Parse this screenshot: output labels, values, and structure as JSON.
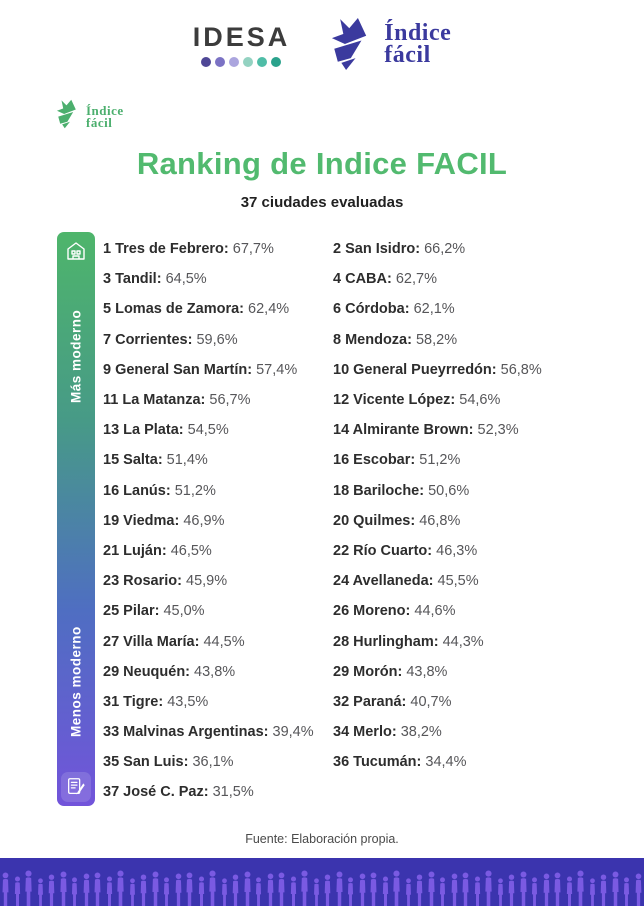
{
  "header": {
    "idesa": {
      "name": "IDESA",
      "dot_colors": [
        "#4f4796",
        "#7b72c4",
        "#aba5de",
        "#93d2c1",
        "#4fbda7",
        "#2aa28c"
      ]
    },
    "indice_facil_logo": {
      "line1": "Índice",
      "line2": "fácil",
      "color": "#3b3a9e"
    }
  },
  "badge_logo": {
    "line1": "Índice",
    "line2": "fácil",
    "color": "#4caf6e"
  },
  "title": "Ranking de Indice FACIL",
  "subtitle": "37 ciudades evaluadas",
  "scale": {
    "top_label": "Más moderno",
    "bottom_label": "Menos moderno",
    "top_icon": "modern-city-icon",
    "bottom_icon": "writing-hand-icon",
    "gradient": [
      "#4eb56b",
      "#479a87",
      "#4f6ec2",
      "#7254da"
    ]
  },
  "ranking": [
    {
      "rank": "1",
      "city": "Tres de Febrero",
      "value": "67,7%"
    },
    {
      "rank": "2",
      "city": "San Isidro",
      "value": "66,2%"
    },
    {
      "rank": "3",
      "city": "Tandil",
      "value": "64,5%"
    },
    {
      "rank": "4",
      "city": "CABA",
      "value": "62,7%"
    },
    {
      "rank": "5",
      "city": "Lomas de Zamora",
      "value": "62,4%"
    },
    {
      "rank": "6",
      "city": "Córdoba",
      "value": "62,1%"
    },
    {
      "rank": "7",
      "city": "Corrientes",
      "value": "59,6%"
    },
    {
      "rank": "8",
      "city": "Mendoza",
      "value": "58,2%"
    },
    {
      "rank": "9",
      "city": "General San Martín",
      "value": "57,4%"
    },
    {
      "rank": "10",
      "city": "General Pueyrredón",
      "value": "56,8%"
    },
    {
      "rank": "11",
      "city": "La Matanza",
      "value": "56,7%"
    },
    {
      "rank": "12",
      "city": "Vicente López",
      "value": "54,6%"
    },
    {
      "rank": "13",
      "city": "La Plata",
      "value": "54,5%"
    },
    {
      "rank": "14",
      "city": "Almirante Brown",
      "value": "52,3%"
    },
    {
      "rank": "15",
      "city": "Salta",
      "value": "51,4%"
    },
    {
      "rank": "16",
      "city": "Escobar",
      "value": "51,2%"
    },
    {
      "rank": "16",
      "city": "Lanús",
      "value": "51,2%"
    },
    {
      "rank": "18",
      "city": "Bariloche",
      "value": "50,6%"
    },
    {
      "rank": "19",
      "city": "Viedma",
      "value": "46,9%"
    },
    {
      "rank": "20",
      "city": "Quilmes",
      "value": "46,8%"
    },
    {
      "rank": "21",
      "city": "Luján",
      "value": "46,5%"
    },
    {
      "rank": "22",
      "city": "Río Cuarto",
      "value": "46,3%"
    },
    {
      "rank": "23",
      "city": "Rosario",
      "value": "45,9%"
    },
    {
      "rank": "24",
      "city": "Avellaneda",
      "value": "45,5%"
    },
    {
      "rank": "25",
      "city": "Pilar",
      "value": "45,0%"
    },
    {
      "rank": "26",
      "city": "Moreno",
      "value": "44,6%"
    },
    {
      "rank": "27",
      "city": "Villa María",
      "value": "44,5%"
    },
    {
      "rank": "28",
      "city": "Hurlingham",
      "value": "44,3%"
    },
    {
      "rank": "29",
      "city": "Neuquén",
      "value": "43,8%"
    },
    {
      "rank": "29",
      "city": "Morón",
      "value": "43,8%"
    },
    {
      "rank": "31",
      "city": "Tigre",
      "value": "43,5%"
    },
    {
      "rank": "32",
      "city": "Paraná",
      "value": "40,7%"
    },
    {
      "rank": "33",
      "city": "Malvinas Argentinas",
      "value": "39,4%"
    },
    {
      "rank": "34",
      "city": "Merlo",
      "value": "38,2%"
    },
    {
      "rank": "35",
      "city": "San Luis",
      "value": "36,1%"
    },
    {
      "rank": "36",
      "city": "Tucumán",
      "value": "34,4%"
    },
    {
      "rank": "37",
      "city": "José C. Paz",
      "value": "31,5%"
    }
  ],
  "footer": {
    "source": "Fuente: Elaboración propia.",
    "band_bg": "#3b34ae",
    "figure_color": "#7a5ae2"
  }
}
